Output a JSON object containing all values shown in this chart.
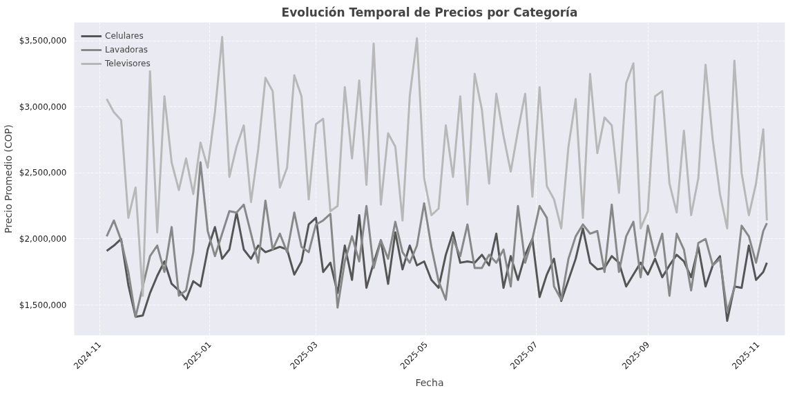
{
  "chart_data": {
    "type": "line",
    "title": "Evolución Temporal de Precios por Categoría",
    "xlabel": "Fecha",
    "ylabel": "Precio Promedio (COP)",
    "x": [
      "2024-11-05",
      "2024-11-09",
      "2024-11-13",
      "2024-11-17",
      "2024-11-21",
      "2024-11-25",
      "2024-11-29",
      "2024-12-03",
      "2024-12-07",
      "2024-12-11",
      "2024-12-15",
      "2024-12-19",
      "2024-12-23",
      "2024-12-27",
      "2024-12-31",
      "2025-01-04",
      "2025-01-08",
      "2025-01-12",
      "2025-01-16",
      "2025-01-20",
      "2025-01-24",
      "2025-01-28",
      "2025-02-01",
      "2025-02-05",
      "2025-02-09",
      "2025-02-13",
      "2025-02-17",
      "2025-02-21",
      "2025-02-25",
      "2025-03-01",
      "2025-03-05",
      "2025-03-09",
      "2025-03-13",
      "2025-03-17",
      "2025-03-21",
      "2025-03-25",
      "2025-03-29",
      "2025-04-02",
      "2025-04-06",
      "2025-04-10",
      "2025-04-14",
      "2025-04-18",
      "2025-04-22",
      "2025-04-26",
      "2025-04-30",
      "2025-05-04",
      "2025-05-08",
      "2025-05-12",
      "2025-05-16",
      "2025-05-20",
      "2025-05-24",
      "2025-05-28",
      "2025-06-01",
      "2025-06-05",
      "2025-06-09",
      "2025-06-13",
      "2025-06-17",
      "2025-06-21",
      "2025-06-25",
      "2025-06-29",
      "2025-07-03",
      "2025-07-07",
      "2025-07-11",
      "2025-07-15",
      "2025-07-19",
      "2025-07-23",
      "2025-07-27",
      "2025-07-31",
      "2025-08-04",
      "2025-08-08",
      "2025-08-12",
      "2025-08-16",
      "2025-08-20",
      "2025-08-24",
      "2025-08-28",
      "2025-09-01",
      "2025-09-05",
      "2025-09-09",
      "2025-09-13",
      "2025-09-17",
      "2025-09-21",
      "2025-09-25",
      "2025-09-29",
      "2025-10-03",
      "2025-10-07",
      "2025-10-11",
      "2025-10-15",
      "2025-10-19",
      "2025-10-23",
      "2025-10-27",
      "2025-10-31",
      "2025-11-04",
      "2025-11-06"
    ],
    "series": [
      {
        "name": "Celulares",
        "color": "#555555",
        "values": [
          1910000,
          1950000,
          2000000,
          1650000,
          1410000,
          1420000,
          1590000,
          1720000,
          1830000,
          1660000,
          1610000,
          1540000,
          1680000,
          1640000,
          1920000,
          2090000,
          1850000,
          1920000,
          2200000,
          1920000,
          1850000,
          1950000,
          1900000,
          1920000,
          1940000,
          1920000,
          1730000,
          1830000,
          2110000,
          2160000,
          1750000,
          1820000,
          1590000,
          1950000,
          1690000,
          2180000,
          1630000,
          1820000,
          1990000,
          1660000,
          2050000,
          1770000,
          1950000,
          1800000,
          1830000,
          1690000,
          1630000,
          1880000,
          2050000,
          1820000,
          1830000,
          1820000,
          1880000,
          1800000,
          2040000,
          1630000,
          1870000,
          1690000,
          1880000,
          2000000,
          1560000,
          1730000,
          1850000,
          1530000,
          1690000,
          1850000,
          2080000,
          1820000,
          1770000,
          1780000,
          1870000,
          1820000,
          1640000,
          1730000,
          1820000,
          1730000,
          1850000,
          1710000,
          1800000,
          1880000,
          1830000,
          1710000,
          1940000,
          1640000,
          1800000,
          1870000,
          1380000,
          1640000,
          1630000,
          1950000,
          1690000,
          1750000,
          1820000
        ]
      },
      {
        "name": "Lavadoras",
        "color": "#888888",
        "values": [
          2020000,
          2140000,
          1990000,
          1750000,
          1410000,
          1640000,
          1870000,
          1950000,
          1750000,
          2090000,
          1570000,
          1610000,
          1900000,
          2580000,
          2060000,
          1870000,
          2040000,
          2210000,
          2200000,
          2260000,
          2040000,
          1820000,
          2290000,
          1920000,
          2040000,
          1900000,
          2200000,
          1940000,
          1900000,
          2110000,
          2140000,
          2190000,
          1480000,
          1830000,
          2020000,
          1830000,
          2250000,
          1780000,
          1990000,
          1850000,
          2130000,
          1900000,
          1820000,
          1950000,
          2270000,
          1940000,
          1680000,
          1540000,
          2000000,
          1870000,
          2110000,
          1780000,
          1780000,
          1880000,
          1820000,
          1920000,
          1640000,
          2250000,
          1820000,
          2000000,
          2250000,
          2160000,
          1640000,
          1540000,
          1850000,
          2020000,
          2110000,
          2040000,
          2060000,
          1750000,
          2260000,
          1750000,
          2020000,
          2130000,
          1710000,
          2100000,
          1870000,
          2040000,
          1570000,
          2040000,
          1920000,
          1610000,
          1970000,
          2000000,
          1800000,
          1850000,
          1450000,
          1630000,
          2100000,
          2020000,
          1820000,
          2060000,
          2120000
        ]
      },
      {
        "name": "Televisores",
        "color": "#b8b8b8",
        "values": [
          3060000,
          2960000,
          2900000,
          2160000,
          2390000,
          1570000,
          3270000,
          2050000,
          3080000,
          2580000,
          2370000,
          2610000,
          2340000,
          2730000,
          2540000,
          2960000,
          3530000,
          2470000,
          2700000,
          2860000,
          2280000,
          2680000,
          3220000,
          3120000,
          2390000,
          2540000,
          3240000,
          3080000,
          2300000,
          2870000,
          2910000,
          2210000,
          2250000,
          3150000,
          2610000,
          3200000,
          2410000,
          3480000,
          2260000,
          2800000,
          2700000,
          2140000,
          3080000,
          3520000,
          2460000,
          2180000,
          2230000,
          2860000,
          2470000,
          3080000,
          2260000,
          3250000,
          2980000,
          2420000,
          3100000,
          2780000,
          2510000,
          2820000,
          3100000,
          2320000,
          3150000,
          2400000,
          2300000,
          2080000,
          2700000,
          3060000,
          2160000,
          3250000,
          2650000,
          2920000,
          2860000,
          2350000,
          3180000,
          3330000,
          2080000,
          2210000,
          3080000,
          3120000,
          2420000,
          2200000,
          2820000,
          2180000,
          2460000,
          3320000,
          2750000,
          2340000,
          2080000,
          3350000,
          2500000,
          2180000,
          2420000,
          2830000,
          2140000
        ]
      }
    ],
    "xlim": [
      "2024-10-18",
      "2025-11-16"
    ],
    "xticks": [
      {
        "value": "2024-11-01",
        "label": "2024-11"
      },
      {
        "value": "2025-01-01",
        "label": "2025-01"
      },
      {
        "value": "2025-03-01",
        "label": "2025-03"
      },
      {
        "value": "2025-05-01",
        "label": "2025-05"
      },
      {
        "value": "2025-07-01",
        "label": "2025-07"
      },
      {
        "value": "2025-09-01",
        "label": "2025-09"
      },
      {
        "value": "2025-11-01",
        "label": "2025-11"
      }
    ],
    "ylim": [
      1270000,
      3640000
    ],
    "yticks": [
      {
        "value": 1500000,
        "label": "$1,500,000"
      },
      {
        "value": 2000000,
        "label": "$2,000,000"
      },
      {
        "value": 2500000,
        "label": "$2,500,000"
      },
      {
        "value": 3000000,
        "label": "$3,000,000"
      },
      {
        "value": 3500000,
        "label": "$3,500,000"
      }
    ],
    "grid": true,
    "legend": "top left",
    "line_style": "solid"
  }
}
